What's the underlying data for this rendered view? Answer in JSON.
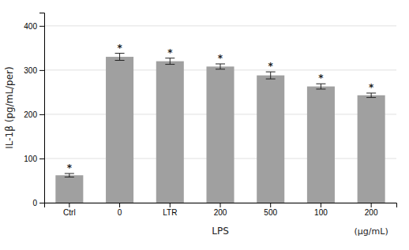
{
  "chart_data": {
    "type": "bar",
    "categories": [
      "Ctrl",
      "0",
      "LTR",
      "200",
      "500",
      "100",
      "200"
    ],
    "values": [
      62,
      330,
      320,
      308,
      288,
      263,
      243
    ],
    "errors": [
      4,
      8,
      7,
      6,
      8,
      6,
      5
    ],
    "significance_labels": [
      "*",
      "*",
      "*",
      "*",
      "*",
      "*",
      "*"
    ],
    "color": "#a0a0a0",
    "xlabel": "LPS",
    "ylabel": "IL-1β (pg/mL/per)",
    "annotations": [
      "(μg/mL)"
    ],
    "ylim": [
      0,
      430
    ],
    "yticks": [
      0,
      100,
      200,
      300,
      400
    ],
    "grid": true
  }
}
